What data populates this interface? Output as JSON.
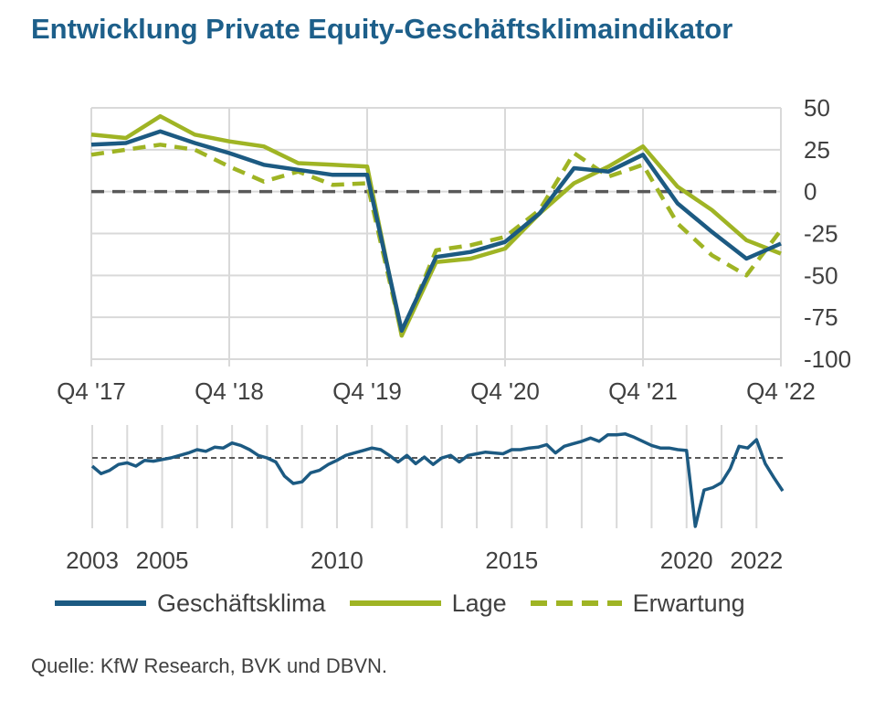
{
  "title": "Entwicklung Private Equity-Geschäftsklimaindikator",
  "source": "Quelle: KfW Research, BVK und DBVN.",
  "colors": {
    "geschaeftsklima": "#1c5a82",
    "lage": "#9fb424",
    "erwartung": "#9fb424",
    "grid": "#d9d9d9",
    "zero_line": "#595959",
    "title": "#1d5f8a",
    "text": "#404040"
  },
  "legend": [
    {
      "label": "Geschäftsklima",
      "style": "solid",
      "color": "#1c5a82"
    },
    {
      "label": "Lage",
      "style": "solid",
      "color": "#9fb424"
    },
    {
      "label": "Erwartung",
      "style": "dashed",
      "color": "#9fb424"
    }
  ],
  "chart_data": [
    {
      "type": "line",
      "x_tick_labels": [
        "Q4 '17",
        "Q4 '18",
        "Q4 '19",
        "Q4 '20",
        "Q4 '21",
        "Q4 '22"
      ],
      "y_tick_labels": [
        "50",
        "25",
        "0",
        "-25",
        "-50",
        "-75",
        "-100"
      ],
      "ylim": [
        -100,
        50
      ],
      "grid": true,
      "reference_line": 0,
      "x": [
        "Q4 '17",
        "Q1 '18",
        "Q2 '18",
        "Q3 '18",
        "Q4 '18",
        "Q1 '19",
        "Q2 '19",
        "Q3 '19",
        "Q4 '19",
        "Q1 '20",
        "Q2 '20",
        "Q3 '20",
        "Q4 '20",
        "Q1 '21",
        "Q2 '21",
        "Q3 '21",
        "Q4 '21",
        "Q1 '22",
        "Q2 '22",
        "Q3 '22",
        "Q4 '22"
      ],
      "series": [
        {
          "name": "Geschäftsklima",
          "values": [
            28,
            29,
            36,
            29,
            23,
            16,
            13,
            10,
            10,
            -83,
            -39,
            -36,
            -30,
            -13,
            14,
            12,
            22,
            -7,
            -24,
            -40,
            -31
          ]
        },
        {
          "name": "Lage",
          "values": [
            34,
            32,
            45,
            34,
            30,
            27,
            17,
            16,
            15,
            -86,
            -42,
            -40,
            -34,
            -13,
            5,
            15,
            27,
            3,
            -11,
            -29,
            -37
          ]
        },
        {
          "name": "Erwartung",
          "values": [
            22,
            25,
            28,
            25,
            15,
            6,
            12,
            4,
            5,
            -85,
            -35,
            -32,
            -27,
            -11,
            23,
            9,
            16,
            -19,
            -38,
            -50,
            -23
          ]
        }
      ]
    },
    {
      "type": "line",
      "x_tick_labels": [
        "2003",
        "2005",
        "2010",
        "2015",
        "2020",
        "2022"
      ],
      "grid": true,
      "reference_line": 0,
      "series": [
        {
          "name": "Geschäftsklima",
          "x": [
            2003.0,
            2003.25,
            2003.5,
            2003.75,
            2004.0,
            2004.25,
            2004.5,
            2004.75,
            2005.0,
            2005.25,
            2005.5,
            2005.75,
            2006.0,
            2006.25,
            2006.5,
            2006.75,
            2007.0,
            2007.25,
            2007.5,
            2007.75,
            2008.0,
            2008.25,
            2008.5,
            2008.75,
            2009.0,
            2009.25,
            2009.5,
            2009.75,
            2010.0,
            2010.25,
            2010.5,
            2010.75,
            2011.0,
            2011.25,
            2011.5,
            2011.75,
            2012.0,
            2012.25,
            2012.5,
            2012.75,
            2013.0,
            2013.25,
            2013.5,
            2013.75,
            2014.0,
            2014.25,
            2014.5,
            2014.75,
            2015.0,
            2015.25,
            2015.5,
            2015.75,
            2016.0,
            2016.25,
            2016.5,
            2016.75,
            2017.0,
            2017.25,
            2017.5,
            2017.75,
            2018.0,
            2018.25,
            2018.5,
            2018.75,
            2019.0,
            2019.25,
            2019.5,
            2019.75,
            2020.0,
            2020.25,
            2020.5,
            2020.75,
            2021.0,
            2021.25,
            2021.5,
            2021.75,
            2022.0,
            2022.25,
            2022.5,
            2022.75
          ],
          "values": [
            -10,
            -19,
            -15,
            -8,
            -6,
            -10,
            -3,
            -4,
            -2,
            0,
            3,
            6,
            10,
            8,
            13,
            12,
            18,
            15,
            10,
            3,
            0,
            -5,
            -22,
            -31,
            -29,
            -18,
            -15,
            -8,
            -3,
            3,
            6,
            9,
            12,
            10,
            3,
            -5,
            3,
            -7,
            1,
            -8,
            0,
            3,
            -5,
            3,
            5,
            7,
            6,
            5,
            10,
            10,
            12,
            13,
            16,
            6,
            14,
            17,
            20,
            24,
            20,
            28,
            28,
            29,
            25,
            20,
            15,
            12,
            12,
            10,
            9,
            -83,
            -39,
            -36,
            -30,
            -13,
            14,
            12,
            22,
            -7,
            -24,
            -40
          ]
        }
      ]
    }
  ]
}
